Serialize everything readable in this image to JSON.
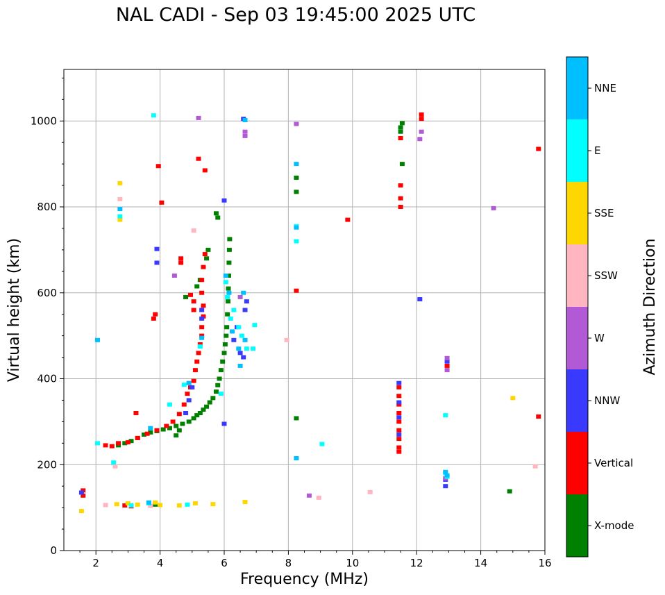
{
  "chart_data": {
    "type": "scatter",
    "title": "NAL CADI - Sep 03 19:45:00 2025 UTC",
    "xlabel": "Frequency (MHz)",
    "ylabel": "Virtual height (km)",
    "xlim": [
      1,
      16
    ],
    "ylim": [
      0,
      1120
    ],
    "xticks": [
      2,
      4,
      6,
      8,
      10,
      12,
      14,
      16
    ],
    "yticks": [
      0,
      200,
      400,
      600,
      800,
      1000
    ],
    "grid": true,
    "colorbar": {
      "label": "Azimuth Direction",
      "categories": [
        "X-mode",
        "Vertical",
        "NNW",
        "W",
        "SSW",
        "SSE",
        "E",
        "NNE"
      ],
      "colors": [
        "#008000",
        "#ff0000",
        "#3a3aff",
        "#b25ad6",
        "#ffb6c1",
        "#ffd700",
        "#00ffff",
        "#00bfff"
      ]
    },
    "series": [
      {
        "name": "X-mode",
        "points": [
          [
            2.7,
            245
          ],
          [
            2.9,
            250
          ],
          [
            3.1,
            255
          ],
          [
            3.3,
            262
          ],
          [
            3.5,
            270
          ],
          [
            3.7,
            275
          ],
          [
            3.9,
            278
          ],
          [
            4.1,
            282
          ],
          [
            4.3,
            285
          ],
          [
            4.5,
            290
          ],
          [
            4.7,
            295
          ],
          [
            4.9,
            300
          ],
          [
            5.05,
            308
          ],
          [
            5.15,
            315
          ],
          [
            5.25,
            320
          ],
          [
            5.35,
            328
          ],
          [
            5.45,
            335
          ],
          [
            5.55,
            345
          ],
          [
            5.65,
            355
          ],
          [
            5.75,
            370
          ],
          [
            5.8,
            385
          ],
          [
            5.85,
            400
          ],
          [
            5.9,
            420
          ],
          [
            5.95,
            440
          ],
          [
            6.0,
            460
          ],
          [
            6.03,
            480
          ],
          [
            6.06,
            500
          ],
          [
            6.08,
            520
          ],
          [
            6.1,
            550
          ],
          [
            6.12,
            580
          ],
          [
            6.13,
            610
          ],
          [
            6.14,
            640
          ],
          [
            6.15,
            670
          ],
          [
            6.16,
            700
          ],
          [
            6.17,
            725
          ],
          [
            5.8,
            775
          ],
          [
            5.75,
            785
          ],
          [
            5.5,
            700
          ],
          [
            5.45,
            680
          ],
          [
            5.25,
            630
          ],
          [
            5.15,
            615
          ],
          [
            4.8,
            590
          ],
          [
            4.6,
            280
          ],
          [
            4.5,
            268
          ],
          [
            3.85,
            107
          ],
          [
            8.25,
            868
          ],
          [
            8.25,
            835
          ],
          [
            8.25,
            308
          ],
          [
            11.55,
            900
          ],
          [
            11.5,
            985
          ],
          [
            11.5,
            975
          ],
          [
            11.55,
            995
          ],
          [
            14.9,
            138
          ]
        ]
      },
      {
        "name": "Vertical",
        "points": [
          [
            2.3,
            245
          ],
          [
            2.5,
            243
          ],
          [
            2.7,
            250
          ],
          [
            3.0,
            252
          ],
          [
            3.3,
            262
          ],
          [
            3.6,
            272
          ],
          [
            3.9,
            280
          ],
          [
            4.2,
            290
          ],
          [
            4.4,
            300
          ],
          [
            4.6,
            318
          ],
          [
            4.75,
            340
          ],
          [
            4.85,
            365
          ],
          [
            4.95,
            380
          ],
          [
            5.05,
            395
          ],
          [
            5.1,
            420
          ],
          [
            5.15,
            440
          ],
          [
            5.2,
            460
          ],
          [
            5.25,
            480
          ],
          [
            5.3,
            500
          ],
          [
            5.3,
            520
          ],
          [
            5.35,
            545
          ],
          [
            5.35,
            570
          ],
          [
            5.3,
            600
          ],
          [
            5.3,
            630
          ],
          [
            5.35,
            660
          ],
          [
            5.4,
            690
          ],
          [
            4.65,
            680
          ],
          [
            4.65,
            670
          ],
          [
            4.95,
            595
          ],
          [
            5.05,
            580
          ],
          [
            5.05,
            560
          ],
          [
            3.85,
            550
          ],
          [
            3.8,
            540
          ],
          [
            3.95,
            895
          ],
          [
            5.2,
            912
          ],
          [
            5.4,
            885
          ],
          [
            4.05,
            810
          ],
          [
            2.9,
            105
          ],
          [
            3.1,
            103
          ],
          [
            3.25,
            320
          ],
          [
            11.45,
            380
          ],
          [
            11.45,
            360
          ],
          [
            11.45,
            340
          ],
          [
            11.45,
            320
          ],
          [
            11.45,
            300
          ],
          [
            11.45,
            280
          ],
          [
            11.45,
            260
          ],
          [
            11.45,
            240
          ],
          [
            11.45,
            230
          ],
          [
            11.5,
            960
          ],
          [
            11.5,
            820
          ],
          [
            11.5,
            800
          ],
          [
            11.5,
            850
          ],
          [
            12.15,
            1015
          ],
          [
            12.15,
            1005
          ],
          [
            12.95,
            430
          ],
          [
            8.25,
            605
          ],
          [
            9.85,
            770
          ],
          [
            15.8,
            935
          ],
          [
            15.8,
            312
          ],
          [
            1.6,
            140
          ],
          [
            1.6,
            128
          ]
        ]
      },
      {
        "name": "NNW",
        "points": [
          [
            4.8,
            320
          ],
          [
            4.9,
            350
          ],
          [
            5.0,
            380
          ],
          [
            5.3,
            560
          ],
          [
            5.3,
            540
          ],
          [
            6.0,
            815
          ],
          [
            6.0,
            295
          ],
          [
            6.3,
            490
          ],
          [
            6.4,
            520
          ],
          [
            6.5,
            460
          ],
          [
            6.6,
            450
          ],
          [
            6.65,
            560
          ],
          [
            6.7,
            580
          ],
          [
            3.9,
            702
          ],
          [
            3.9,
            670
          ],
          [
            11.45,
            390
          ],
          [
            11.45,
            345
          ],
          [
            11.45,
            310
          ],
          [
            11.45,
            270
          ],
          [
            12.1,
            585
          ],
          [
            12.95,
            440
          ],
          [
            12.9,
            165
          ],
          [
            12.9,
            150
          ],
          [
            6.6,
            1005
          ],
          [
            1.55,
            135
          ]
        ]
      },
      {
        "name": "W",
        "points": [
          [
            4.45,
            640
          ],
          [
            6.65,
            965
          ],
          [
            6.65,
            975
          ],
          [
            8.25,
            993
          ],
          [
            12.1,
            958
          ],
          [
            12.15,
            975
          ],
          [
            12.95,
            448
          ],
          [
            12.95,
            420
          ],
          [
            12.9,
            168
          ],
          [
            14.4,
            797
          ],
          [
            8.65,
            128
          ],
          [
            6.5,
            590
          ],
          [
            5.2,
            1007
          ]
        ]
      },
      {
        "name": "SSW",
        "points": [
          [
            2.3,
            106
          ],
          [
            2.6,
            196
          ],
          [
            2.75,
            818
          ],
          [
            5.05,
            745
          ],
          [
            7.95,
            490
          ],
          [
            10.55,
            136
          ],
          [
            8.95,
            123
          ],
          [
            15.7,
            196
          ],
          [
            3.7,
            104
          ]
        ]
      },
      {
        "name": "SSE",
        "points": [
          [
            1.55,
            92
          ],
          [
            2.75,
            855
          ],
          [
            2.75,
            770
          ],
          [
            2.65,
            108
          ],
          [
            3.0,
            110
          ],
          [
            3.3,
            107
          ],
          [
            4.0,
            106
          ],
          [
            4.6,
            105
          ],
          [
            5.1,
            110
          ],
          [
            5.65,
            108
          ],
          [
            6.65,
            113
          ],
          [
            15.0,
            355
          ],
          [
            3.85,
            112
          ]
        ]
      },
      {
        "name": "E",
        "points": [
          [
            2.05,
            250
          ],
          [
            2.55,
            205
          ],
          [
            2.75,
            778
          ],
          [
            3.8,
            1013
          ],
          [
            4.3,
            340
          ],
          [
            4.75,
            386
          ],
          [
            5.25,
            475
          ],
          [
            5.9,
            365
          ],
          [
            6.05,
            625
          ],
          [
            6.1,
            590
          ],
          [
            6.2,
            540
          ],
          [
            6.3,
            560
          ],
          [
            6.45,
            520
          ],
          [
            6.55,
            500
          ],
          [
            6.7,
            470
          ],
          [
            6.9,
            470
          ],
          [
            6.95,
            525
          ],
          [
            8.25,
            755
          ],
          [
            8.25,
            720
          ],
          [
            9.05,
            248
          ],
          [
            12.9,
            315
          ],
          [
            12.9,
            180
          ],
          [
            12.95,
            172
          ],
          [
            3.1,
            105
          ],
          [
            3.65,
            110
          ],
          [
            4.85,
            107
          ]
        ]
      },
      {
        "name": "NNE",
        "points": [
          [
            2.05,
            490
          ],
          [
            2.75,
            795
          ],
          [
            3.7,
            285
          ],
          [
            4.9,
            390
          ],
          [
            5.3,
            495
          ],
          [
            6.05,
            640
          ],
          [
            6.15,
            600
          ],
          [
            6.25,
            510
          ],
          [
            6.45,
            470
          ],
          [
            6.5,
            430
          ],
          [
            6.6,
            600
          ],
          [
            6.65,
            490
          ],
          [
            8.25,
            900
          ],
          [
            8.25,
            215
          ],
          [
            8.25,
            752
          ],
          [
            12.9,
            183
          ],
          [
            12.95,
            175
          ],
          [
            6.65,
            1002
          ],
          [
            3.65,
            112
          ]
        ]
      }
    ]
  }
}
